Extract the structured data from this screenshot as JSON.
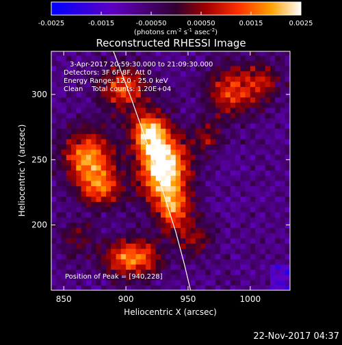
{
  "chart_data": {
    "type": "heatmap",
    "title": "Reconstructed RHESSI Image",
    "xlabel": "Heliocentric X (arcsec)",
    "ylabel": "Heliocentric Y (arcsec)",
    "xlim": [
      840,
      1032
    ],
    "ylim": [
      150,
      333
    ],
    "x_ticks": [
      850,
      900,
      950,
      1000
    ],
    "y_ticks": [
      200,
      250,
      300
    ],
    "colorbar": {
      "range": [
        -0.0025,
        0.0025
      ],
      "ticks": [
        "-0.0025",
        "-0.0015",
        "-0.00050",
        "0.00050",
        "0.0015",
        "0.0025"
      ],
      "units_label": "(photons cm",
      "units_sup1": "-2",
      "units_mid": " s",
      "units_sup2": "-1",
      "units_mid2": " asec",
      "units_sup3": "-2",
      "units_end": ")"
    },
    "info_lines": [
      "3-Apr-2017 20:59:30.000 to 21:09:30.000",
      "Detectors: 3F 6F 8F, Att 0",
      "Energy Range: 12.0 - 25.0 keV",
      "Clean    Total counts: 1.20E+04"
    ],
    "peak_label": "Position of Peak = [940,228]",
    "timestamp": "22-Nov-2017 04:37",
    "sources": [
      {
        "x": 930,
        "y": 245,
        "amp": 1.0,
        "sx": 14,
        "sy": 18
      },
      {
        "x": 918,
        "y": 272,
        "amp": 0.7,
        "sx": 10,
        "sy": 10
      },
      {
        "x": 938,
        "y": 212,
        "amp": 0.55,
        "sx": 10,
        "sy": 12
      },
      {
        "x": 870,
        "y": 252,
        "amp": 0.72,
        "sx": 14,
        "sy": 14
      },
      {
        "x": 880,
        "y": 228,
        "amp": 0.5,
        "sx": 12,
        "sy": 10
      },
      {
        "x": 905,
        "y": 175,
        "amp": 0.68,
        "sx": 16,
        "sy": 10
      },
      {
        "x": 898,
        "y": 305,
        "amp": 0.55,
        "sx": 14,
        "sy": 12
      },
      {
        "x": 985,
        "y": 302,
        "amp": 0.5,
        "sx": 14,
        "sy": 14
      },
      {
        "x": 1010,
        "y": 310,
        "amp": 0.35,
        "sx": 10,
        "sy": 10
      },
      {
        "x": 965,
        "y": 268,
        "amp": 0.3,
        "sx": 8,
        "sy": 8
      },
      {
        "x": 955,
        "y": 190,
        "amp": 0.32,
        "sx": 10,
        "sy": 10
      },
      {
        "x": 860,
        "y": 190,
        "amp": 0.25,
        "sx": 10,
        "sy": 10
      }
    ],
    "limb_curve": [
      [
        890,
        333
      ],
      [
        905,
        295
      ],
      [
        918,
        260
      ],
      [
        930,
        225
      ],
      [
        940,
        195
      ],
      [
        947,
        170
      ],
      [
        952,
        150
      ]
    ]
  }
}
